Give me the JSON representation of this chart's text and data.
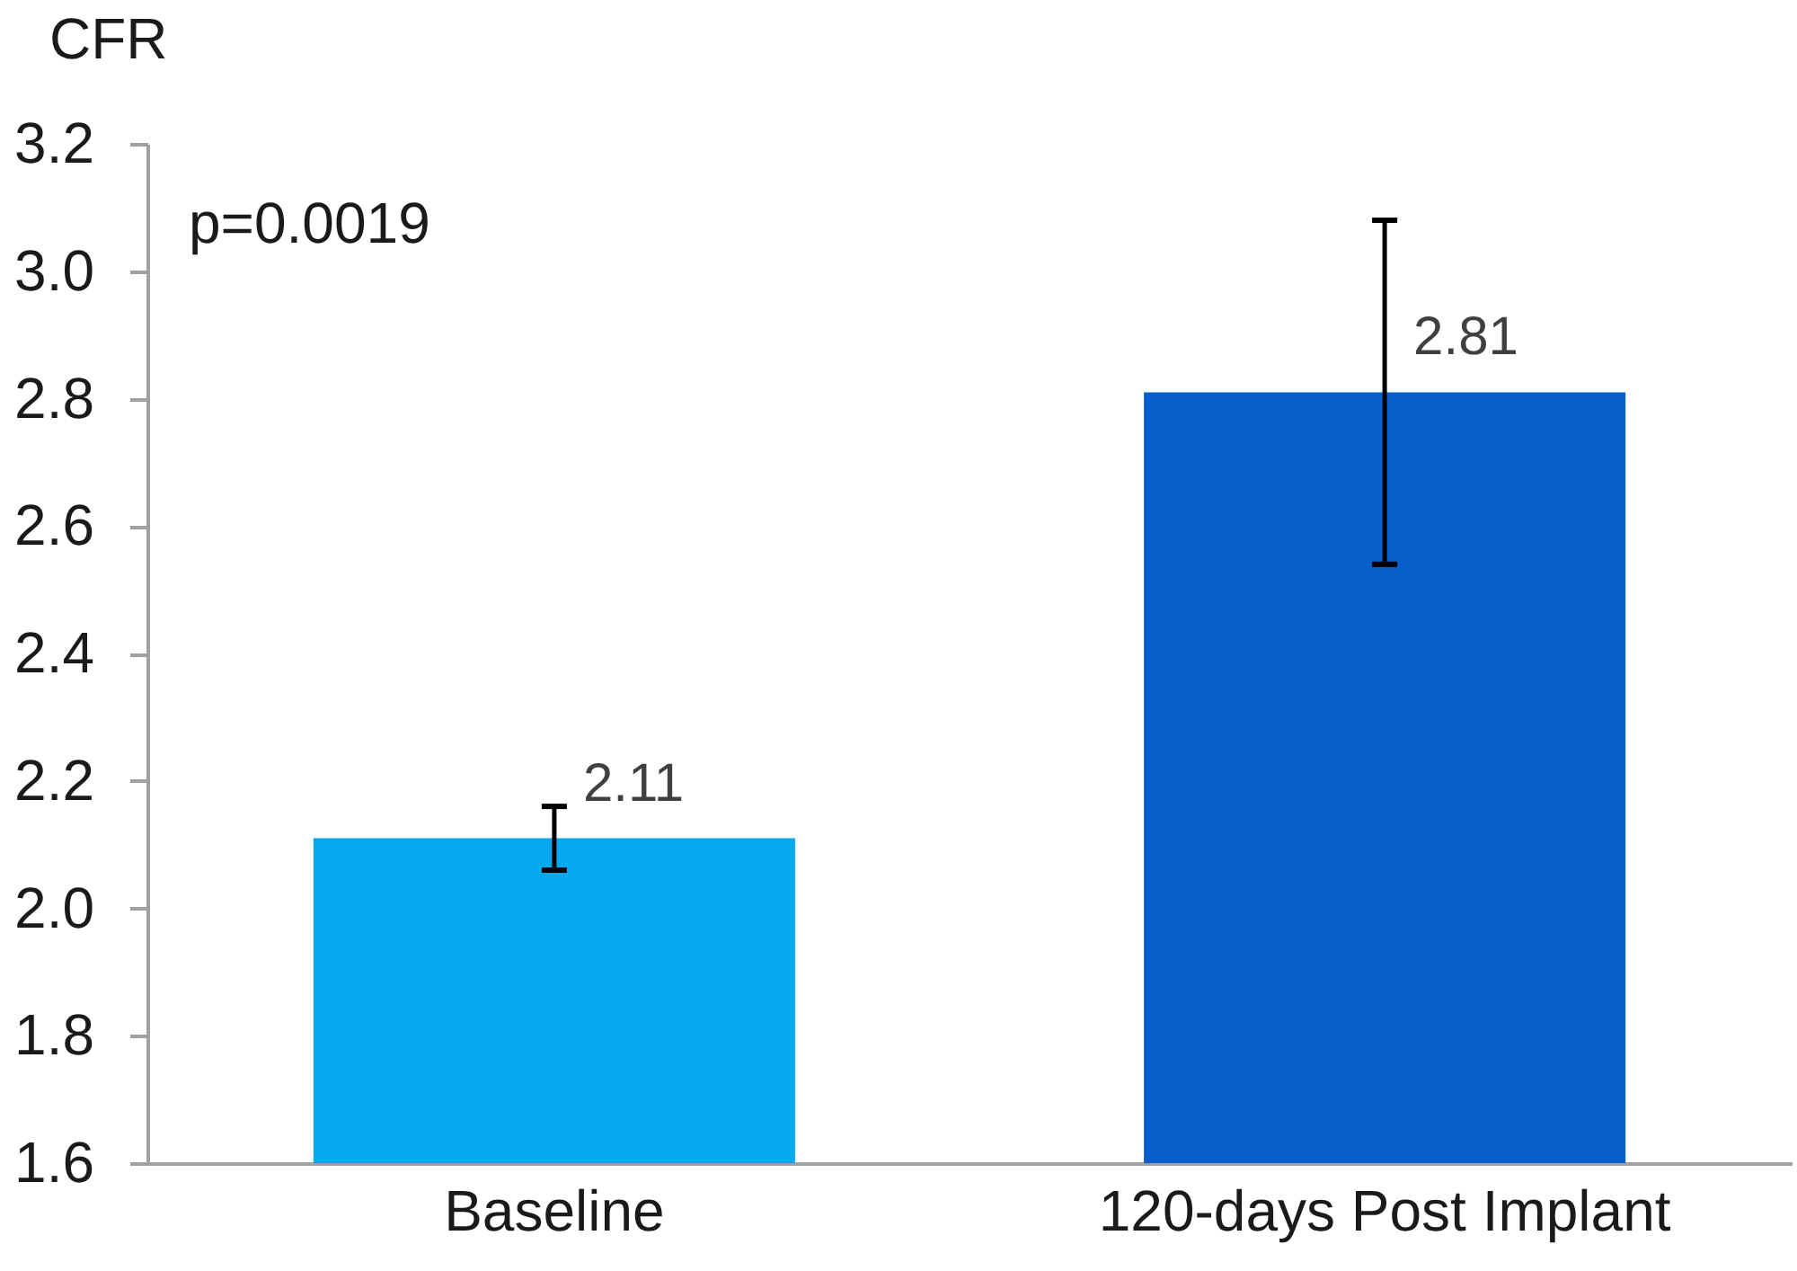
{
  "chart_data": {
    "type": "bar",
    "ylabel": "CFR",
    "annotations": [
      "p=0.0019"
    ],
    "categories": [
      "Baseline",
      "120-days Post Implant"
    ],
    "values": [
      2.11,
      2.81
    ],
    "colors": [
      "#06a8ee",
      "#075fcb"
    ],
    "errors": [
      0.05,
      0.27
    ],
    "data_labels": true,
    "ylim": [
      1.6,
      3.2
    ],
    "yticks": [
      1.6,
      1.8,
      {
        "value": 2.0,
        "label": "2.0"
      },
      2.2,
      2.4,
      2.6,
      2.8,
      {
        "value": 3.0,
        "label": "3.0"
      },
      3.2
    ]
  }
}
